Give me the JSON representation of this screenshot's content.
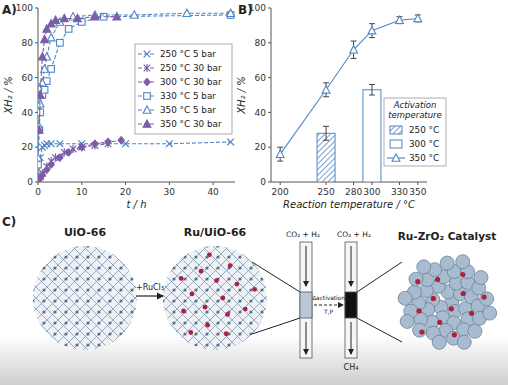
{
  "chart_data": [
    {
      "type": "line",
      "title": "A)",
      "xlabel": "t / h",
      "ylabel": "XH₂ / %",
      "xlim": [
        0,
        45
      ],
      "xticks": [
        0,
        10,
        20,
        30,
        40
      ],
      "ylim": [
        0,
        100
      ],
      "yticks": [
        0,
        20,
        40,
        60,
        80,
        100
      ],
      "grid": false,
      "legend": "right",
      "series": [
        {
          "name": "250 °C 5 bar",
          "color": "#4f86c6",
          "marker": "x",
          "line_style": "dashed",
          "x": [
            0,
            0.5,
            1,
            1.5,
            2,
            3,
            5,
            10,
            20,
            30,
            44
          ],
          "values": [
            0,
            14,
            20,
            21,
            22,
            22,
            22,
            22,
            22,
            22,
            23
          ]
        },
        {
          "name": "250 °C 30 bar",
          "color": "#7b5ea7",
          "marker": "asterisk",
          "line_style": "dashed",
          "x": [
            0.5,
            1,
            2,
            3,
            4,
            6,
            8,
            10,
            13,
            16
          ],
          "values": [
            3,
            5,
            9,
            12,
            14,
            17,
            19,
            20,
            21,
            22
          ]
        },
        {
          "name": "300 °C 30 bar",
          "color": "#7b5ea7",
          "marker": "diamond",
          "line_style": "dashed",
          "x": [
            0.5,
            1,
            2,
            3,
            5,
            7,
            10,
            13,
            16,
            19
          ],
          "values": [
            2,
            4,
            7,
            10,
            14,
            17,
            20,
            22,
            23,
            24
          ]
        },
        {
          "name": "330 °C 5 bar",
          "color": "#4f86c6",
          "marker": "square-open",
          "line_style": "dashed",
          "x": [
            0,
            0.25,
            0.5,
            1,
            1.5,
            2,
            3,
            5,
            7,
            10,
            15,
            44
          ],
          "values": [
            10,
            30,
            40,
            50,
            53,
            58,
            65,
            80,
            88,
            92,
            95,
            96
          ]
        },
        {
          "name": "350 °C 5 bar",
          "color": "#4f86c6",
          "marker": "triangle-open",
          "line_style": "dashed",
          "x": [
            0,
            0.25,
            0.5,
            1,
            1.5,
            2,
            3,
            5,
            8,
            13,
            22,
            34,
            44
          ],
          "values": [
            14,
            32,
            45,
            57,
            65,
            72,
            83,
            92,
            95,
            96,
            96,
            97,
            97
          ]
        },
        {
          "name": "350 °C 30 bar",
          "color": "#7b5ea7",
          "marker": "triangle",
          "line_style": "dashed",
          "x": [
            0.25,
            0.5,
            1,
            1.5,
            2,
            3,
            4,
            6,
            9,
            13,
            18
          ],
          "values": [
            30,
            50,
            72,
            82,
            88,
            91,
            93,
            94,
            94,
            95,
            95
          ]
        }
      ]
    },
    {
      "type": "line",
      "title": "B)",
      "xlabel": "Reaction temperature / °C",
      "ylabel": "XH₂ / %",
      "xlim": [
        190,
        360
      ],
      "xticks": [
        200,
        250,
        280,
        300,
        330,
        350
      ],
      "ylim": [
        0,
        100
      ],
      "yticks": [
        0,
        20,
        40,
        60,
        80,
        100
      ],
      "grid": false,
      "legend": "right",
      "legend_title": "Activation temperature",
      "series": [
        {
          "name": "250 °C",
          "type": "bar",
          "color": "#4f86c6",
          "x": [
            250
          ],
          "values": [
            28
          ],
          "errors": [
            4
          ]
        },
        {
          "name": "300 °C",
          "type": "bar",
          "color": "#ffffff",
          "x": [
            300
          ],
          "values": [
            53
          ],
          "errors": [
            3
          ]
        },
        {
          "name": "350 °C",
          "type": "line",
          "color": "#4f86c6",
          "marker": "triangle-open",
          "line_style": "solid",
          "x": [
            200,
            250,
            280,
            300,
            330,
            350
          ],
          "values": [
            16,
            53,
            76,
            87,
            93,
            94
          ],
          "errors": [
            4,
            4,
            5,
            4,
            2,
            2
          ]
        }
      ]
    }
  ],
  "diagram": {
    "label": "C)",
    "nodes": [
      {
        "label": "UiO-66"
      },
      {
        "label": "Ru/UiO-66"
      },
      {
        "label": "Ru-ZrO₂ Catalyst"
      }
    ],
    "edges": [
      {
        "label": "+RuCl₃"
      },
      {
        "label": "Δactivation",
        "sublabel": "T,P"
      }
    ],
    "reactor": {
      "inlet": [
        "CO₂ + H₂",
        "CO₂ + H₂"
      ],
      "outlet": "CH₄"
    }
  }
}
